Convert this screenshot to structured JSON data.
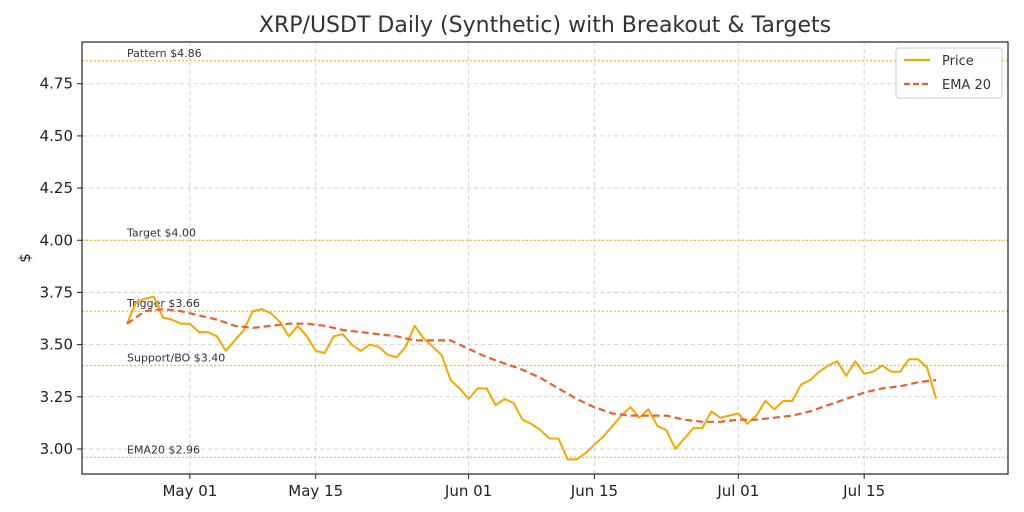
{
  "chart_data": {
    "type": "line",
    "title": "XRP/USDT Daily (Synthetic) with Breakout & Targets",
    "xlabel": "",
    "ylabel": "$",
    "ylim": [
      2.88,
      4.95
    ],
    "yticks": [
      3.0,
      3.25,
      3.5,
      3.75,
      4.0,
      4.25,
      4.5,
      4.75
    ],
    "ytick_labels": [
      "3.00",
      "3.25",
      "3.50",
      "3.75",
      "4.00",
      "4.25",
      "4.50",
      "4.75"
    ],
    "xlim": [
      "2025-04-19",
      "2025-07-31"
    ],
    "xticks": [
      "2025-05-01",
      "2025-05-15",
      "2025-06-01",
      "2025-06-15",
      "2025-07-01",
      "2025-07-15"
    ],
    "xtick_labels": [
      "May 01",
      "May 15",
      "Jun 01",
      "Jun 15",
      "Jul 01",
      "Jul 15"
    ],
    "grid": true,
    "legend_position": "top-right",
    "reference_lines": [
      {
        "label": "Pattern $4.86",
        "y": 4.86
      },
      {
        "label": "Target $4.00",
        "y": 4.0
      },
      {
        "label": "Trigger $3.66",
        "y": 3.66
      },
      {
        "label": "Support/BO $3.40",
        "y": 3.4
      },
      {
        "label": "EMA20 $2.96",
        "y": 2.96
      }
    ],
    "colors": {
      "price": "#f5a800",
      "ema": "#e8602c",
      "reference": "#f0c030",
      "grid": "#cccccc"
    },
    "series": [
      {
        "name": "Price",
        "style": "solid",
        "x": [
          "2025-04-24",
          "2025-04-25",
          "2025-04-26",
          "2025-04-27",
          "2025-04-28",
          "2025-04-29",
          "2025-04-30",
          "2025-05-01",
          "2025-05-02",
          "2025-05-03",
          "2025-05-04",
          "2025-05-05",
          "2025-05-06",
          "2025-05-07",
          "2025-05-08",
          "2025-05-09",
          "2025-05-10",
          "2025-05-11",
          "2025-05-12",
          "2025-05-13",
          "2025-05-14",
          "2025-05-15",
          "2025-05-16",
          "2025-05-17",
          "2025-05-18",
          "2025-05-19",
          "2025-05-20",
          "2025-05-21",
          "2025-05-22",
          "2025-05-23",
          "2025-05-24",
          "2025-05-25",
          "2025-05-26",
          "2025-05-27",
          "2025-05-28",
          "2025-05-29",
          "2025-05-30",
          "2025-05-31",
          "2025-06-01",
          "2025-06-02",
          "2025-06-03",
          "2025-06-04",
          "2025-06-05",
          "2025-06-06",
          "2025-06-07",
          "2025-06-08",
          "2025-06-09",
          "2025-06-10",
          "2025-06-11",
          "2025-06-12",
          "2025-06-13",
          "2025-06-14",
          "2025-06-15",
          "2025-06-16",
          "2025-06-17",
          "2025-06-18",
          "2025-06-19",
          "2025-06-20",
          "2025-06-21",
          "2025-06-22",
          "2025-06-23",
          "2025-06-24",
          "2025-06-25",
          "2025-06-26",
          "2025-06-27",
          "2025-06-28",
          "2025-06-29",
          "2025-06-30",
          "2025-07-01",
          "2025-07-02",
          "2025-07-03",
          "2025-07-04",
          "2025-07-05",
          "2025-07-06",
          "2025-07-07",
          "2025-07-08",
          "2025-07-09",
          "2025-07-10",
          "2025-07-11",
          "2025-07-12",
          "2025-07-13",
          "2025-07-14",
          "2025-07-15",
          "2025-07-16",
          "2025-07-17",
          "2025-07-18",
          "2025-07-19",
          "2025-07-20",
          "2025-07-21",
          "2025-07-22",
          "2025-07-23"
        ],
        "values": [
          3.6,
          3.7,
          3.72,
          3.73,
          3.63,
          3.62,
          3.6,
          3.6,
          3.56,
          3.56,
          3.54,
          3.47,
          3.52,
          3.57,
          3.66,
          3.67,
          3.65,
          3.61,
          3.54,
          3.59,
          3.54,
          3.47,
          3.46,
          3.54,
          3.55,
          3.5,
          3.47,
          3.5,
          3.49,
          3.45,
          3.44,
          3.49,
          3.59,
          3.53,
          3.49,
          3.45,
          3.33,
          3.29,
          3.24,
          3.29,
          3.29,
          3.21,
          3.24,
          3.22,
          3.14,
          3.12,
          3.09,
          3.05,
          3.05,
          2.95,
          2.95,
          2.98,
          3.02,
          3.06,
          3.11,
          3.16,
          3.2,
          3.15,
          3.19,
          3.11,
          3.09,
          3.0,
          3.05,
          3.1,
          3.1,
          3.18,
          3.15,
          3.16,
          3.17,
          3.12,
          3.16,
          3.23,
          3.19,
          3.23,
          3.23,
          3.31,
          3.33,
          3.37,
          3.4,
          3.42,
          3.35,
          3.42,
          3.36,
          3.37,
          3.4,
          3.37,
          3.37,
          3.43,
          3.43,
          3.39,
          3.24
        ]
      },
      {
        "name": "EMA 20",
        "style": "dashed",
        "x": [
          "2025-04-24",
          "2025-04-26",
          "2025-04-28",
          "2025-04-30",
          "2025-05-02",
          "2025-05-04",
          "2025-05-06",
          "2025-05-08",
          "2025-05-10",
          "2025-05-12",
          "2025-05-14",
          "2025-05-16",
          "2025-05-18",
          "2025-05-20",
          "2025-05-22",
          "2025-05-24",
          "2025-05-26",
          "2025-05-28",
          "2025-05-30",
          "2025-06-01",
          "2025-06-03",
          "2025-06-05",
          "2025-06-07",
          "2025-06-09",
          "2025-06-11",
          "2025-06-13",
          "2025-06-15",
          "2025-06-17",
          "2025-06-19",
          "2025-06-21",
          "2025-06-23",
          "2025-06-25",
          "2025-06-27",
          "2025-06-29",
          "2025-07-01",
          "2025-07-03",
          "2025-07-05",
          "2025-07-07",
          "2025-07-09",
          "2025-07-11",
          "2025-07-13",
          "2025-07-15",
          "2025-07-17",
          "2025-07-19",
          "2025-07-21",
          "2025-07-23"
        ],
        "values": [
          3.6,
          3.66,
          3.67,
          3.66,
          3.64,
          3.62,
          3.59,
          3.58,
          3.59,
          3.6,
          3.6,
          3.59,
          3.57,
          3.56,
          3.55,
          3.54,
          3.52,
          3.52,
          3.52,
          3.48,
          3.44,
          3.41,
          3.38,
          3.34,
          3.29,
          3.24,
          3.2,
          3.17,
          3.16,
          3.16,
          3.16,
          3.14,
          3.13,
          3.13,
          3.14,
          3.14,
          3.15,
          3.16,
          3.18,
          3.21,
          3.24,
          3.27,
          3.29,
          3.3,
          3.32,
          3.33
        ]
      }
    ]
  }
}
